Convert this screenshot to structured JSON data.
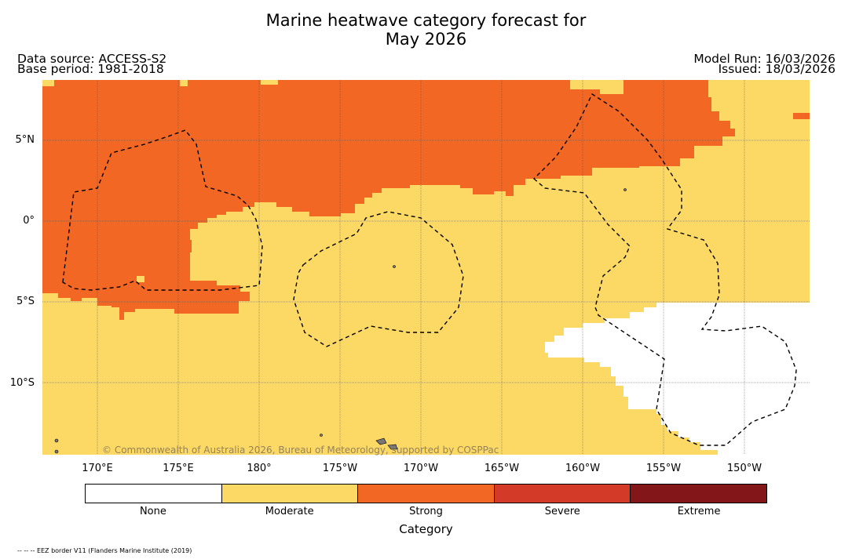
{
  "title": {
    "line1": "Marine heatwave category forecast for",
    "line2": "May 2026"
  },
  "info_left": {
    "data_source": "Data source: ACCESS-S2",
    "base_period": "Base period: 1981-2018"
  },
  "info_right": {
    "model_run": "Model Run: 16/03/2026",
    "issued": "Issued: 18/03/2026"
  },
  "map": {
    "lat_labels": [
      "5°N",
      "0°",
      "5°S",
      "10°S"
    ],
    "lon_labels": [
      "170°E",
      "175°E",
      "180°",
      "175°W",
      "170°W",
      "165°W",
      "160°W",
      "155°W",
      "150°W"
    ],
    "copyright": "© Commonwealth of Australia 2026, Bureau of Meteorology, supported by COSPPac"
  },
  "legend": {
    "title": "Category",
    "categories": [
      {
        "label": "None",
        "color": "#ffffff"
      },
      {
        "label": "Moderate",
        "color": "#fcd864"
      },
      {
        "label": "Strong",
        "color": "#f26724"
      },
      {
        "label": "Severe",
        "color": "#d43a28"
      },
      {
        "label": "Extreme",
        "color": "#831618"
      }
    ]
  },
  "footnote": "-- -- -- EEZ border V11 (Flanders Marine Institute (2019)"
}
